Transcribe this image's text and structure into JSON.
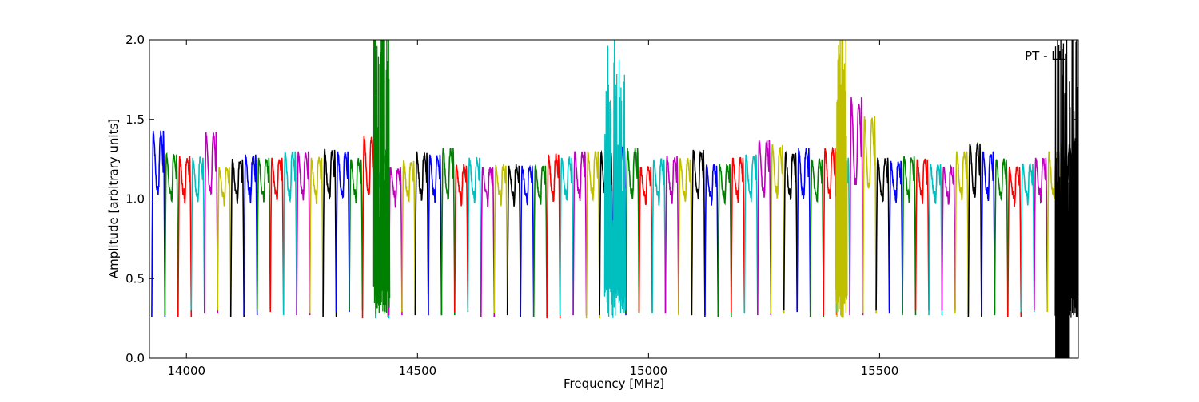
{
  "chart_data": {
    "type": "line",
    "annotation": "PT - LL",
    "xlabel": "Frequency [MHz]",
    "ylabel": "Amplitude [arbitrary units]",
    "xlim": [
      13920,
      15930
    ],
    "ylim": [
      0.0,
      2.0
    ],
    "xticks": [
      14000,
      14500,
      15000,
      15500
    ],
    "xtick_labels": [
      "14000",
      "14500",
      "15000",
      "15500"
    ],
    "yticks": [
      0.0,
      0.5,
      1.0,
      1.5,
      2.0
    ],
    "ytick_labels": [
      "0.0",
      "0.5",
      "1.0",
      "1.5",
      "2.0"
    ],
    "grid": false,
    "legend": "none",
    "channel_colors": [
      "#0000ff",
      "#008000",
      "#ff0000",
      "#00bfbf",
      "#bf00bf",
      "#bfbf00",
      "#000000"
    ],
    "channel_start_mhz": 13925,
    "channel_width_mhz": 28.5,
    "channel_count": 70,
    "channel_peak_levels": [
      1.43,
      1.28,
      1.27,
      1.26,
      1.42,
      1.2,
      1.25,
      1.28,
      1.26,
      1.26,
      1.3,
      1.3,
      1.26,
      1.31,
      1.3,
      1.25,
      1.4,
      1.27,
      1.2,
      1.24,
      1.29,
      1.28,
      1.32,
      1.21,
      1.26,
      1.2,
      1.21,
      1.21,
      1.21,
      1.21,
      1.28,
      1.26,
      1.3,
      1.3,
      1.29,
      1.33,
      1.32,
      1.2,
      1.25,
      1.27,
      1.25,
      1.31,
      1.21,
      1.22,
      1.26,
      1.28,
      1.37,
      1.34,
      1.29,
      1.32,
      1.25,
      1.32,
      1.26,
      1.64,
      1.52,
      1.26,
      1.24,
      1.27,
      1.25,
      1.22,
      1.2,
      1.3,
      1.35,
      1.3,
      1.25,
      1.2,
      1.22,
      1.26,
      1.3,
      1.35
    ],
    "channel_dip_levels": [
      0.26,
      0.27,
      0.26,
      0.3,
      0.28,
      0.3,
      0.26,
      0.27,
      0.3,
      0.29,
      0.27,
      0.27,
      0.28,
      0.26,
      0.29,
      0.3,
      0.25,
      0.25,
      0.27,
      0.29,
      0.27,
      0.27,
      0.27,
      0.29,
      0.29,
      0.26,
      0.28,
      0.27,
      0.26,
      0.26,
      0.25,
      0.27,
      0.27,
      0.25,
      0.27,
      0.27,
      0.28,
      0.29,
      0.28,
      0.28,
      0.27,
      0.27,
      0.26,
      0.26,
      0.29,
      0.28,
      0.27,
      0.28,
      0.3,
      0.29,
      0.26,
      0.27,
      0.29,
      0.27,
      0.28,
      0.3,
      0.28,
      0.27,
      0.3,
      0.27,
      0.3,
      0.28,
      0.26,
      0.28,
      0.27,
      0.26,
      0.29,
      0.3,
      0.29,
      0.27
    ],
    "noise_bursts": [
      {
        "x_range": [
          14405,
          14440
        ],
        "color": "#008000",
        "max": 2.0
      },
      {
        "x_range": [
          14905,
          14950
        ],
        "color": "#00bfbf",
        "max": 2.0
      },
      {
        "x_range": [
          15405,
          15430
        ],
        "color": "#bfbf00",
        "max": 2.0
      },
      {
        "x_range": [
          15880,
          15930
        ],
        "color": "#000000",
        "max": 2.0
      }
    ]
  }
}
